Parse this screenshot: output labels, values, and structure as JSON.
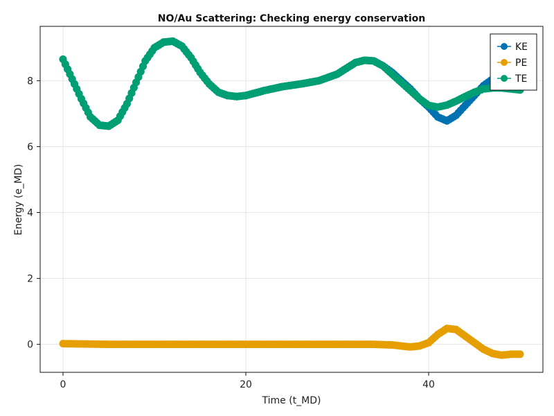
{
  "chart_data": {
    "type": "scatter",
    "title": "NO/Au Scattering: Checking energy conservation",
    "xlabel": "Time (t_MD)",
    "ylabel": "Energy (e_MD)",
    "xlim": [
      -2.5,
      52.5
    ],
    "ylim": [
      -0.85,
      9.65
    ],
    "xticks": [
      0,
      20,
      40
    ],
    "yticks": [
      0,
      2,
      4,
      6,
      8
    ],
    "grid": true,
    "legend_position": "top-right",
    "series": [
      {
        "name": "KE",
        "color": "#0072B2",
        "points": [
          [
            0,
            8.65
          ],
          [
            2,
            7.45
          ],
          [
            3,
            6.9
          ],
          [
            4,
            6.65
          ],
          [
            5,
            6.62
          ],
          [
            6,
            6.8
          ],
          [
            7,
            7.3
          ],
          [
            8,
            7.95
          ],
          [
            9,
            8.6
          ],
          [
            10,
            9.0
          ],
          [
            11,
            9.17
          ],
          [
            12,
            9.2
          ],
          [
            13,
            9.05
          ],
          [
            14,
            8.7
          ],
          [
            15,
            8.25
          ],
          [
            16,
            7.9
          ],
          [
            17,
            7.65
          ],
          [
            18,
            7.55
          ],
          [
            19,
            7.52
          ],
          [
            20,
            7.55
          ],
          [
            22,
            7.7
          ],
          [
            24,
            7.82
          ],
          [
            26,
            7.9
          ],
          [
            28,
            8.0
          ],
          [
            30,
            8.2
          ],
          [
            32,
            8.55
          ],
          [
            33,
            8.62
          ],
          [
            34,
            8.6
          ],
          [
            35,
            8.45
          ],
          [
            36,
            8.25
          ],
          [
            37,
            8.0
          ],
          [
            38,
            7.75
          ],
          [
            39,
            7.45
          ],
          [
            40,
            7.2
          ],
          [
            41,
            6.9
          ],
          [
            42,
            6.78
          ],
          [
            43,
            6.95
          ],
          [
            44,
            7.25
          ],
          [
            45,
            7.55
          ],
          [
            46,
            7.85
          ],
          [
            47,
            8.05
          ],
          [
            48,
            8.12
          ],
          [
            49,
            8.0
          ],
          [
            50,
            7.95
          ]
        ]
      },
      {
        "name": "PE",
        "color": "#E69F00",
        "points": [
          [
            0,
            0.02
          ],
          [
            5,
            0.0
          ],
          [
            10,
            0.0
          ],
          [
            15,
            0.0
          ],
          [
            20,
            0.0
          ],
          [
            25,
            0.0
          ],
          [
            30,
            0.0
          ],
          [
            34,
            0.0
          ],
          [
            36,
            -0.02
          ],
          [
            38,
            -0.08
          ],
          [
            39,
            -0.05
          ],
          [
            40,
            0.05
          ],
          [
            41,
            0.3
          ],
          [
            42,
            0.48
          ],
          [
            43,
            0.45
          ],
          [
            44,
            0.25
          ],
          [
            45,
            0.05
          ],
          [
            46,
            -0.15
          ],
          [
            47,
            -0.28
          ],
          [
            48,
            -0.33
          ],
          [
            49,
            -0.3
          ],
          [
            50,
            -0.3
          ]
        ]
      },
      {
        "name": "TE",
        "color": "#009E73",
        "points": [
          [
            0,
            8.65
          ],
          [
            2,
            7.45
          ],
          [
            3,
            6.9
          ],
          [
            4,
            6.65
          ],
          [
            5,
            6.62
          ],
          [
            6,
            6.8
          ],
          [
            7,
            7.3
          ],
          [
            8,
            7.95
          ],
          [
            9,
            8.6
          ],
          [
            10,
            9.0
          ],
          [
            11,
            9.17
          ],
          [
            12,
            9.2
          ],
          [
            13,
            9.05
          ],
          [
            14,
            8.7
          ],
          [
            15,
            8.25
          ],
          [
            16,
            7.9
          ],
          [
            17,
            7.65
          ],
          [
            18,
            7.55
          ],
          [
            19,
            7.52
          ],
          [
            20,
            7.55
          ],
          [
            22,
            7.7
          ],
          [
            24,
            7.82
          ],
          [
            26,
            7.9
          ],
          [
            28,
            8.0
          ],
          [
            30,
            8.2
          ],
          [
            32,
            8.55
          ],
          [
            33,
            8.62
          ],
          [
            34,
            8.6
          ],
          [
            35,
            8.45
          ],
          [
            36,
            8.2
          ],
          [
            37,
            7.95
          ],
          [
            38,
            7.7
          ],
          [
            39,
            7.45
          ],
          [
            40,
            7.25
          ],
          [
            41,
            7.2
          ],
          [
            42,
            7.26
          ],
          [
            43,
            7.38
          ],
          [
            44,
            7.52
          ],
          [
            45,
            7.65
          ],
          [
            46,
            7.75
          ],
          [
            47,
            7.78
          ],
          [
            48,
            7.78
          ],
          [
            49,
            7.75
          ],
          [
            50,
            7.72
          ]
        ]
      }
    ]
  }
}
